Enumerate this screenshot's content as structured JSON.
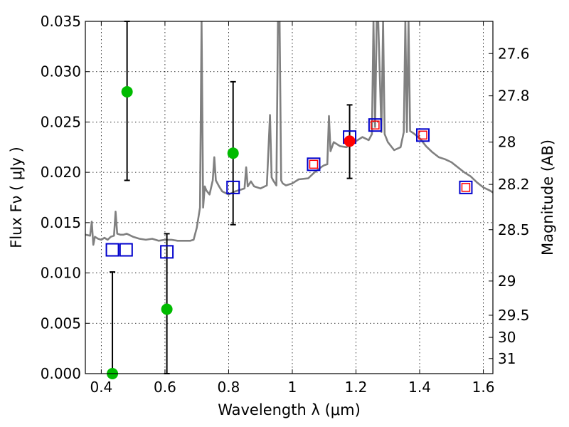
{
  "chart_data": {
    "type": "scatter",
    "xlabel": "Wavelength  λ (μm)",
    "ylabel": "Flux  Fν  ( μJy )",
    "y2label": "Magnitude (AB)",
    "xlim": [
      0.35,
      1.63
    ],
    "ylim": [
      0.0,
      0.035
    ],
    "x_ticks": [
      {
        "value": 0.4,
        "label": "0.4"
      },
      {
        "value": 0.6,
        "label": "0.6"
      },
      {
        "value": 0.8,
        "label": "0.8"
      },
      {
        "value": 1.0,
        "label": "1"
      },
      {
        "value": 1.2,
        "label": "1.2"
      },
      {
        "value": 1.4,
        "label": "1.4"
      },
      {
        "value": 1.6,
        "label": "1.6"
      }
    ],
    "y_ticks": [
      {
        "value": 0.0,
        "label": "0.000"
      },
      {
        "value": 0.005,
        "label": "0.005"
      },
      {
        "value": 0.01,
        "label": "0.010"
      },
      {
        "value": 0.015,
        "label": "0.015"
      },
      {
        "value": 0.02,
        "label": "0.020"
      },
      {
        "value": 0.025,
        "label": "0.025"
      },
      {
        "value": 0.03,
        "label": "0.030"
      },
      {
        "value": 0.035,
        "label": "0.035"
      }
    ],
    "mag_ticks": [
      {
        "flux": 0.0318,
        "label": "27.6"
      },
      {
        "flux": 0.0276,
        "label": "27.8"
      },
      {
        "flux": 0.023,
        "label": "28"
      },
      {
        "flux": 0.0188,
        "label": "28.2"
      },
      {
        "flux": 0.0143,
        "label": "28.5"
      },
      {
        "flux": 0.0092,
        "label": "29"
      },
      {
        "flux": 0.0058,
        "label": "29.5"
      },
      {
        "flux": 0.0036,
        "label": "30"
      },
      {
        "flux": 0.0015,
        "label": "31"
      }
    ],
    "grid": true,
    "series": [
      {
        "name": "observed",
        "color": "#00bb00",
        "points": [
          {
            "x": 0.435,
            "y": 0.0,
            "yerr_low": 0.0,
            "yerr_high": 0.0101
          },
          {
            "x": 0.481,
            "y": 0.028,
            "yerr_low": 0.0192,
            "yerr_high": 0.035
          },
          {
            "x": 0.606,
            "y": 0.0064,
            "yerr_low": 0.0,
            "yerr_high": 0.0139
          },
          {
            "x": 0.814,
            "y": 0.0219,
            "yerr_low": 0.0148,
            "yerr_high": 0.029
          }
        ]
      },
      {
        "name": "observed-red",
        "color": "#ff0000",
        "points": [
          {
            "x": 1.18,
            "y": 0.0231,
            "yerr_low": 0.0194,
            "yerr_high": 0.0267
          }
        ]
      },
      {
        "name": "model_photometry",
        "color": "#0000cc",
        "points": [
          {
            "x": 0.435,
            "y": 0.0123
          },
          {
            "x": 0.478,
            "y": 0.0123
          },
          {
            "x": 0.606,
            "y": 0.0121
          },
          {
            "x": 0.814,
            "y": 0.0185
          },
          {
            "x": 1.067,
            "y": 0.0208
          },
          {
            "x": 1.18,
            "y": 0.0235
          },
          {
            "x": 1.26,
            "y": 0.0247
          },
          {
            "x": 1.41,
            "y": 0.0237
          },
          {
            "x": 1.545,
            "y": 0.0185
          }
        ]
      },
      {
        "name": "model_photometry_inner",
        "color": "#ff0000",
        "points": [
          {
            "x": 1.067,
            "y": 0.0208
          },
          {
            "x": 1.26,
            "y": 0.0247
          },
          {
            "x": 1.41,
            "y": 0.0237
          },
          {
            "x": 1.545,
            "y": 0.0185
          }
        ]
      },
      {
        "name": "model_spectrum",
        "color": "#808080",
        "type": "line",
        "x": [
          0.35,
          0.365,
          0.37,
          0.375,
          0.38,
          0.39,
          0.4,
          0.41,
          0.42,
          0.43,
          0.44,
          0.445,
          0.45,
          0.46,
          0.47,
          0.48,
          0.5,
          0.52,
          0.54,
          0.56,
          0.58,
          0.6,
          0.62,
          0.64,
          0.66,
          0.68,
          0.69,
          0.7,
          0.71,
          0.715,
          0.72,
          0.725,
          0.73,
          0.74,
          0.75,
          0.755,
          0.76,
          0.77,
          0.78,
          0.8,
          0.82,
          0.84,
          0.85,
          0.855,
          0.86,
          0.87,
          0.88,
          0.9,
          0.92,
          0.93,
          0.935,
          0.94,
          0.95,
          0.955,
          0.96,
          0.965,
          0.97,
          0.98,
          1.0,
          1.02,
          1.05,
          1.07,
          1.09,
          1.1,
          1.11,
          1.115,
          1.12,
          1.13,
          1.15,
          1.17,
          1.2,
          1.22,
          1.24,
          1.25,
          1.255,
          1.26,
          1.265,
          1.27,
          1.28,
          1.285,
          1.29,
          1.3,
          1.32,
          1.34,
          1.35,
          1.355,
          1.36,
          1.365,
          1.37,
          1.38,
          1.4,
          1.42,
          1.44,
          1.46,
          1.48,
          1.5,
          1.52,
          1.54,
          1.56,
          1.58,
          1.6,
          1.62,
          1.63
        ],
        "y": [
          0.0138,
          0.0137,
          0.0151,
          0.0128,
          0.0136,
          0.0134,
          0.0133,
          0.0135,
          0.0133,
          0.0136,
          0.0137,
          0.0161,
          0.0139,
          0.0138,
          0.0138,
          0.0139,
          0.0136,
          0.0134,
          0.0133,
          0.0134,
          0.0132,
          0.0133,
          0.0133,
          0.0132,
          0.0132,
          0.0132,
          0.0133,
          0.0145,
          0.0165,
          0.035,
          0.0165,
          0.0186,
          0.0182,
          0.0178,
          0.0192,
          0.0215,
          0.0192,
          0.0186,
          0.0181,
          0.0178,
          0.0181,
          0.0183,
          0.0184,
          0.0205,
          0.0186,
          0.0191,
          0.0186,
          0.0184,
          0.0187,
          0.0257,
          0.0195,
          0.0192,
          0.0187,
          0.035,
          0.035,
          0.0192,
          0.0189,
          0.0187,
          0.0189,
          0.0193,
          0.0194,
          0.02,
          0.0205,
          0.0207,
          0.0208,
          0.0256,
          0.0221,
          0.023,
          0.0226,
          0.0225,
          0.0231,
          0.0235,
          0.0232,
          0.0238,
          0.035,
          0.0245,
          0.035,
          0.035,
          0.024,
          0.035,
          0.0238,
          0.023,
          0.0222,
          0.0225,
          0.024,
          0.035,
          0.024,
          0.035,
          0.0241,
          0.0239,
          0.0234,
          0.0226,
          0.022,
          0.0215,
          0.0213,
          0.021,
          0.0205,
          0.02,
          0.0196,
          0.019,
          0.0185,
          0.0182,
          0.018
        ]
      }
    ]
  }
}
